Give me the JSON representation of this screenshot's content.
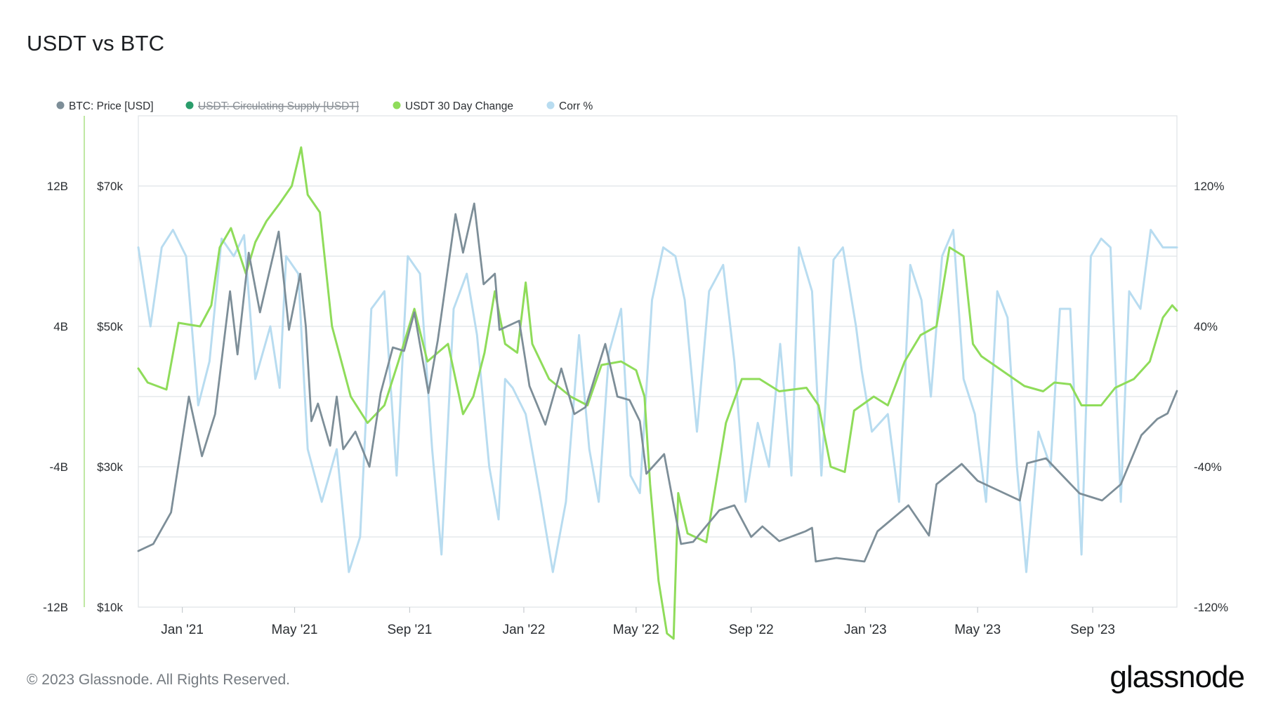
{
  "title": "USDT vs BTC",
  "footer": {
    "copyright": "© 2023 Glassnode. All Rights Reserved.",
    "brand": "glassnode"
  },
  "colors": {
    "btc": "#7d8e98",
    "supply": "#2a9d6b",
    "change": "#8fdc5a",
    "corr": "#b8dcf0",
    "grid": "#dfe3e6",
    "axis_text": "#2b2f33",
    "left_axis_line": "#bfe8a3"
  },
  "chart_data": {
    "type": "line",
    "legend": [
      {
        "name": "BTC: Price [USD]",
        "color": "#7d8e98",
        "hidden": false
      },
      {
        "name": "USDT: Circulating Supply [USDT]",
        "color": "#2a9d6b",
        "hidden": true
      },
      {
        "name": "USDT 30 Day Change",
        "color": "#8fdc5a",
        "hidden": false
      },
      {
        "name": "Corr %",
        "color": "#b8dcf0",
        "hidden": false
      }
    ],
    "x_range": [
      "2020-11-15",
      "2023-11-30"
    ],
    "x_ticks": [
      {
        "label": "Jan '21",
        "date": "2021-01-01"
      },
      {
        "label": "May '21",
        "date": "2021-05-01"
      },
      {
        "label": "Sep '21",
        "date": "2021-09-01"
      },
      {
        "label": "Jan '22",
        "date": "2022-01-01"
      },
      {
        "label": "May '22",
        "date": "2022-05-01"
      },
      {
        "label": "Sep '22",
        "date": "2022-09-01"
      },
      {
        "label": "Jan '23",
        "date": "2023-01-01"
      },
      {
        "label": "May '23",
        "date": "2023-05-01"
      },
      {
        "label": "Sep '23",
        "date": "2023-09-01"
      }
    ],
    "y_axis_usdt": {
      "ticks": [
        "12B",
        "4B",
        "-4B",
        "-12B"
      ],
      "values": [
        12,
        4,
        -4,
        -12
      ],
      "range": [
        -12,
        16
      ]
    },
    "y_axis_btc": {
      "ticks": [
        "$70k",
        "$50k",
        "$30k",
        "$10k"
      ],
      "values": [
        70000,
        50000,
        30000,
        10000
      ],
      "range": [
        10000,
        80000
      ]
    },
    "y_axis_corr": {
      "ticks": [
        "120%",
        "40%",
        "-40%",
        "-120%"
      ],
      "values": [
        120,
        40,
        -40,
        -120
      ],
      "range": [
        -120,
        160
      ]
    },
    "series": [
      {
        "name": "BTC: Price [USD]",
        "axis": "btc",
        "points": [
          [
            "2020-11-15",
            18000
          ],
          [
            "2020-12-01",
            19000
          ],
          [
            "2020-12-20",
            23500
          ],
          [
            "2021-01-08",
            40000
          ],
          [
            "2021-01-22",
            31500
          ],
          [
            "2021-02-05",
            37500
          ],
          [
            "2021-02-21",
            55000
          ],
          [
            "2021-03-01",
            46000
          ],
          [
            "2021-03-13",
            60500
          ],
          [
            "2021-03-25",
            52000
          ],
          [
            "2021-04-14",
            63500
          ],
          [
            "2021-04-25",
            49500
          ],
          [
            "2021-05-07",
            57500
          ],
          [
            "2021-05-13",
            50000
          ],
          [
            "2021-05-19",
            36500
          ],
          [
            "2021-05-26",
            39000
          ],
          [
            "2021-06-08",
            33000
          ],
          [
            "2021-06-15",
            40000
          ],
          [
            "2021-06-22",
            32500
          ],
          [
            "2021-07-05",
            35000
          ],
          [
            "2021-07-20",
            30000
          ],
          [
            "2021-08-01",
            40500
          ],
          [
            "2021-08-14",
            47000
          ],
          [
            "2021-08-26",
            46500
          ],
          [
            "2021-09-06",
            52000
          ],
          [
            "2021-09-21",
            40500
          ],
          [
            "2021-10-01",
            48000
          ],
          [
            "2021-10-20",
            66000
          ],
          [
            "2021-10-28",
            60500
          ],
          [
            "2021-11-09",
            67500
          ],
          [
            "2021-11-19",
            56000
          ],
          [
            "2021-12-01",
            57500
          ],
          [
            "2021-12-06",
            49500
          ],
          [
            "2021-12-27",
            50800
          ],
          [
            "2022-01-07",
            41500
          ],
          [
            "2022-01-24",
            36000
          ],
          [
            "2022-02-10",
            44000
          ],
          [
            "2022-02-24",
            37500
          ],
          [
            "2022-03-08",
            38500
          ],
          [
            "2022-03-29",
            47500
          ],
          [
            "2022-04-11",
            40000
          ],
          [
            "2022-04-24",
            39500
          ],
          [
            "2022-05-05",
            36500
          ],
          [
            "2022-05-12",
            29000
          ],
          [
            "2022-05-31",
            31800
          ],
          [
            "2022-06-13",
            22500
          ],
          [
            "2022-06-18",
            19000
          ],
          [
            "2022-07-01",
            19300
          ],
          [
            "2022-07-29",
            23800
          ],
          [
            "2022-08-14",
            24500
          ],
          [
            "2022-09-01",
            20000
          ],
          [
            "2022-09-13",
            21500
          ],
          [
            "2022-10-01",
            19400
          ],
          [
            "2022-10-29",
            20800
          ],
          [
            "2022-11-05",
            21300
          ],
          [
            "2022-11-09",
            16500
          ],
          [
            "2022-12-01",
            17000
          ],
          [
            "2022-12-31",
            16500
          ],
          [
            "2023-01-14",
            20800
          ],
          [
            "2023-02-16",
            24500
          ],
          [
            "2023-03-10",
            20200
          ],
          [
            "2023-03-18",
            27500
          ],
          [
            "2023-04-14",
            30400
          ],
          [
            "2023-05-01",
            28000
          ],
          [
            "2023-06-15",
            25200
          ],
          [
            "2023-06-23",
            30500
          ],
          [
            "2023-07-13",
            31200
          ],
          [
            "2023-08-18",
            26200
          ],
          [
            "2023-09-11",
            25200
          ],
          [
            "2023-10-01",
            27500
          ],
          [
            "2023-10-23",
            34500
          ],
          [
            "2023-11-09",
            36800
          ],
          [
            "2023-11-20",
            37600
          ],
          [
            "2023-11-30",
            40800
          ]
        ]
      },
      {
        "name": "USDT 30 Day Change",
        "axis": "usdt",
        "points": [
          [
            "2020-11-15",
            1.6
          ],
          [
            "2020-11-25",
            0.8
          ],
          [
            "2020-12-15",
            0.4
          ],
          [
            "2020-12-28",
            4.2
          ],
          [
            "2021-01-20",
            4.0
          ],
          [
            "2021-02-01",
            5.2
          ],
          [
            "2021-02-10",
            8.5
          ],
          [
            "2021-02-22",
            9.6
          ],
          [
            "2021-03-10",
            7.0
          ],
          [
            "2021-03-20",
            8.8
          ],
          [
            "2021-04-01",
            10.0
          ],
          [
            "2021-04-15",
            11.0
          ],
          [
            "2021-04-28",
            12.0
          ],
          [
            "2021-05-08",
            14.2
          ],
          [
            "2021-05-15",
            11.5
          ],
          [
            "2021-05-28",
            10.5
          ],
          [
            "2021-06-10",
            4.0
          ],
          [
            "2021-06-30",
            0.0
          ],
          [
            "2021-07-18",
            -1.5
          ],
          [
            "2021-08-05",
            -0.5
          ],
          [
            "2021-08-20",
            2.0
          ],
          [
            "2021-09-06",
            5.0
          ],
          [
            "2021-09-20",
            2.0
          ],
          [
            "2021-10-12",
            3.0
          ],
          [
            "2021-10-28",
            -1.0
          ],
          [
            "2021-11-08",
            0.0
          ],
          [
            "2021-11-20",
            2.5
          ],
          [
            "2021-12-01",
            6.0
          ],
          [
            "2021-12-12",
            3.0
          ],
          [
            "2021-12-25",
            2.5
          ],
          [
            "2022-01-03",
            6.5
          ],
          [
            "2022-01-10",
            3.0
          ],
          [
            "2022-01-28",
            1.0
          ],
          [
            "2022-02-20",
            0.0
          ],
          [
            "2022-03-10",
            -0.5
          ],
          [
            "2022-03-25",
            1.8
          ],
          [
            "2022-04-15",
            2.0
          ],
          [
            "2022-05-01",
            1.5
          ],
          [
            "2022-05-10",
            0.0
          ],
          [
            "2022-05-16",
            -5.0
          ],
          [
            "2022-05-25",
            -10.5
          ],
          [
            "2022-06-03",
            -13.5
          ],
          [
            "2022-06-10",
            -13.8
          ],
          [
            "2022-06-15",
            -5.5
          ],
          [
            "2022-06-25",
            -7.8
          ],
          [
            "2022-07-15",
            -8.3
          ],
          [
            "2022-08-05",
            -1.5
          ],
          [
            "2022-08-22",
            1.0
          ],
          [
            "2022-09-10",
            1.0
          ],
          [
            "2022-10-01",
            0.3
          ],
          [
            "2022-10-30",
            0.5
          ],
          [
            "2022-11-12",
            -0.5
          ],
          [
            "2022-11-25",
            -4.0
          ],
          [
            "2022-12-10",
            -4.3
          ],
          [
            "2022-12-20",
            -0.8
          ],
          [
            "2023-01-10",
            0.0
          ],
          [
            "2023-01-25",
            -0.5
          ],
          [
            "2023-02-12",
            2.0
          ],
          [
            "2023-03-01",
            3.5
          ],
          [
            "2023-03-18",
            4.0
          ],
          [
            "2023-04-01",
            8.5
          ],
          [
            "2023-04-16",
            8.0
          ],
          [
            "2023-04-26",
            3.0
          ],
          [
            "2023-05-05",
            2.3
          ],
          [
            "2023-06-01",
            1.3
          ],
          [
            "2023-06-20",
            0.6
          ],
          [
            "2023-07-10",
            0.3
          ],
          [
            "2023-07-22",
            0.8
          ],
          [
            "2023-08-08",
            0.7
          ],
          [
            "2023-08-20",
            -0.5
          ],
          [
            "2023-09-10",
            -0.5
          ],
          [
            "2023-09-25",
            0.5
          ],
          [
            "2023-10-15",
            1.0
          ],
          [
            "2023-11-01",
            2.0
          ],
          [
            "2023-11-15",
            4.5
          ],
          [
            "2023-11-25",
            5.2
          ],
          [
            "2023-11-30",
            4.9
          ]
        ]
      },
      {
        "name": "Corr %",
        "axis": "corr",
        "points": [
          [
            "2020-11-15",
            85
          ],
          [
            "2020-11-28",
            40
          ],
          [
            "2020-12-10",
            85
          ],
          [
            "2020-12-22",
            95
          ],
          [
            "2021-01-05",
            80
          ],
          [
            "2021-01-18",
            -5
          ],
          [
            "2021-01-30",
            20
          ],
          [
            "2021-02-12",
            90
          ],
          [
            "2021-02-25",
            80
          ],
          [
            "2021-03-08",
            92
          ],
          [
            "2021-03-20",
            10
          ],
          [
            "2021-04-05",
            40
          ],
          [
            "2021-04-15",
            5
          ],
          [
            "2021-04-22",
            80
          ],
          [
            "2021-05-05",
            70
          ],
          [
            "2021-05-15",
            -30
          ],
          [
            "2021-05-30",
            -60
          ],
          [
            "2021-06-15",
            -30
          ],
          [
            "2021-06-28",
            -100
          ],
          [
            "2021-07-10",
            -80
          ],
          [
            "2021-07-22",
            50
          ],
          [
            "2021-08-05",
            60
          ],
          [
            "2021-08-18",
            -45
          ],
          [
            "2021-08-30",
            80
          ],
          [
            "2021-09-12",
            70
          ],
          [
            "2021-09-25",
            -30
          ],
          [
            "2021-10-05",
            -90
          ],
          [
            "2021-10-18",
            50
          ],
          [
            "2021-11-01",
            70
          ],
          [
            "2021-11-12",
            35
          ],
          [
            "2021-11-25",
            -40
          ],
          [
            "2021-12-05",
            -70
          ],
          [
            "2021-12-12",
            10
          ],
          [
            "2021-12-20",
            5
          ],
          [
            "2022-01-03",
            -10
          ],
          [
            "2022-01-18",
            -55
          ],
          [
            "2022-02-01",
            -100
          ],
          [
            "2022-02-15",
            -60
          ],
          [
            "2022-03-01",
            35
          ],
          [
            "2022-03-12",
            -30
          ],
          [
            "2022-03-22",
            -60
          ],
          [
            "2022-04-02",
            25
          ],
          [
            "2022-04-15",
            50
          ],
          [
            "2022-04-25",
            -45
          ],
          [
            "2022-05-05",
            -55
          ],
          [
            "2022-05-18",
            55
          ],
          [
            "2022-05-30",
            85
          ],
          [
            "2022-06-12",
            80
          ],
          [
            "2022-06-22",
            55
          ],
          [
            "2022-07-05",
            -20
          ],
          [
            "2022-07-18",
            60
          ],
          [
            "2022-08-02",
            75
          ],
          [
            "2022-08-14",
            20
          ],
          [
            "2022-08-26",
            -60
          ],
          [
            "2022-09-08",
            -15
          ],
          [
            "2022-09-20",
            -40
          ],
          [
            "2022-10-02",
            30
          ],
          [
            "2022-10-14",
            -45
          ],
          [
            "2022-10-22",
            85
          ],
          [
            "2022-11-05",
            60
          ],
          [
            "2022-11-15",
            -45
          ],
          [
            "2022-11-28",
            78
          ],
          [
            "2022-12-08",
            85
          ],
          [
            "2022-12-22",
            40
          ],
          [
            "2022-12-28",
            15
          ],
          [
            "2023-01-08",
            -20
          ],
          [
            "2023-01-25",
            -10
          ],
          [
            "2023-02-06",
            -60
          ],
          [
            "2023-02-18",
            75
          ],
          [
            "2023-03-02",
            55
          ],
          [
            "2023-03-12",
            0
          ],
          [
            "2023-03-24",
            80
          ],
          [
            "2023-04-05",
            95
          ],
          [
            "2023-04-16",
            10
          ],
          [
            "2023-04-28",
            -10
          ],
          [
            "2023-05-10",
            -60
          ],
          [
            "2023-05-22",
            60
          ],
          [
            "2023-06-02",
            45
          ],
          [
            "2023-06-12",
            -40
          ],
          [
            "2023-06-22",
            -100
          ],
          [
            "2023-07-05",
            -20
          ],
          [
            "2023-07-18",
            -40
          ],
          [
            "2023-07-28",
            50
          ],
          [
            "2023-08-08",
            50
          ],
          [
            "2023-08-20",
            -90
          ],
          [
            "2023-08-30",
            80
          ],
          [
            "2023-09-10",
            90
          ],
          [
            "2023-09-20",
            85
          ],
          [
            "2023-10-01",
            -60
          ],
          [
            "2023-10-10",
            60
          ],
          [
            "2023-10-22",
            50
          ],
          [
            "2023-11-02",
            95
          ],
          [
            "2023-11-15",
            85
          ],
          [
            "2023-11-30",
            85
          ]
        ]
      }
    ],
    "grid": true,
    "legend_position": "top-left"
  }
}
